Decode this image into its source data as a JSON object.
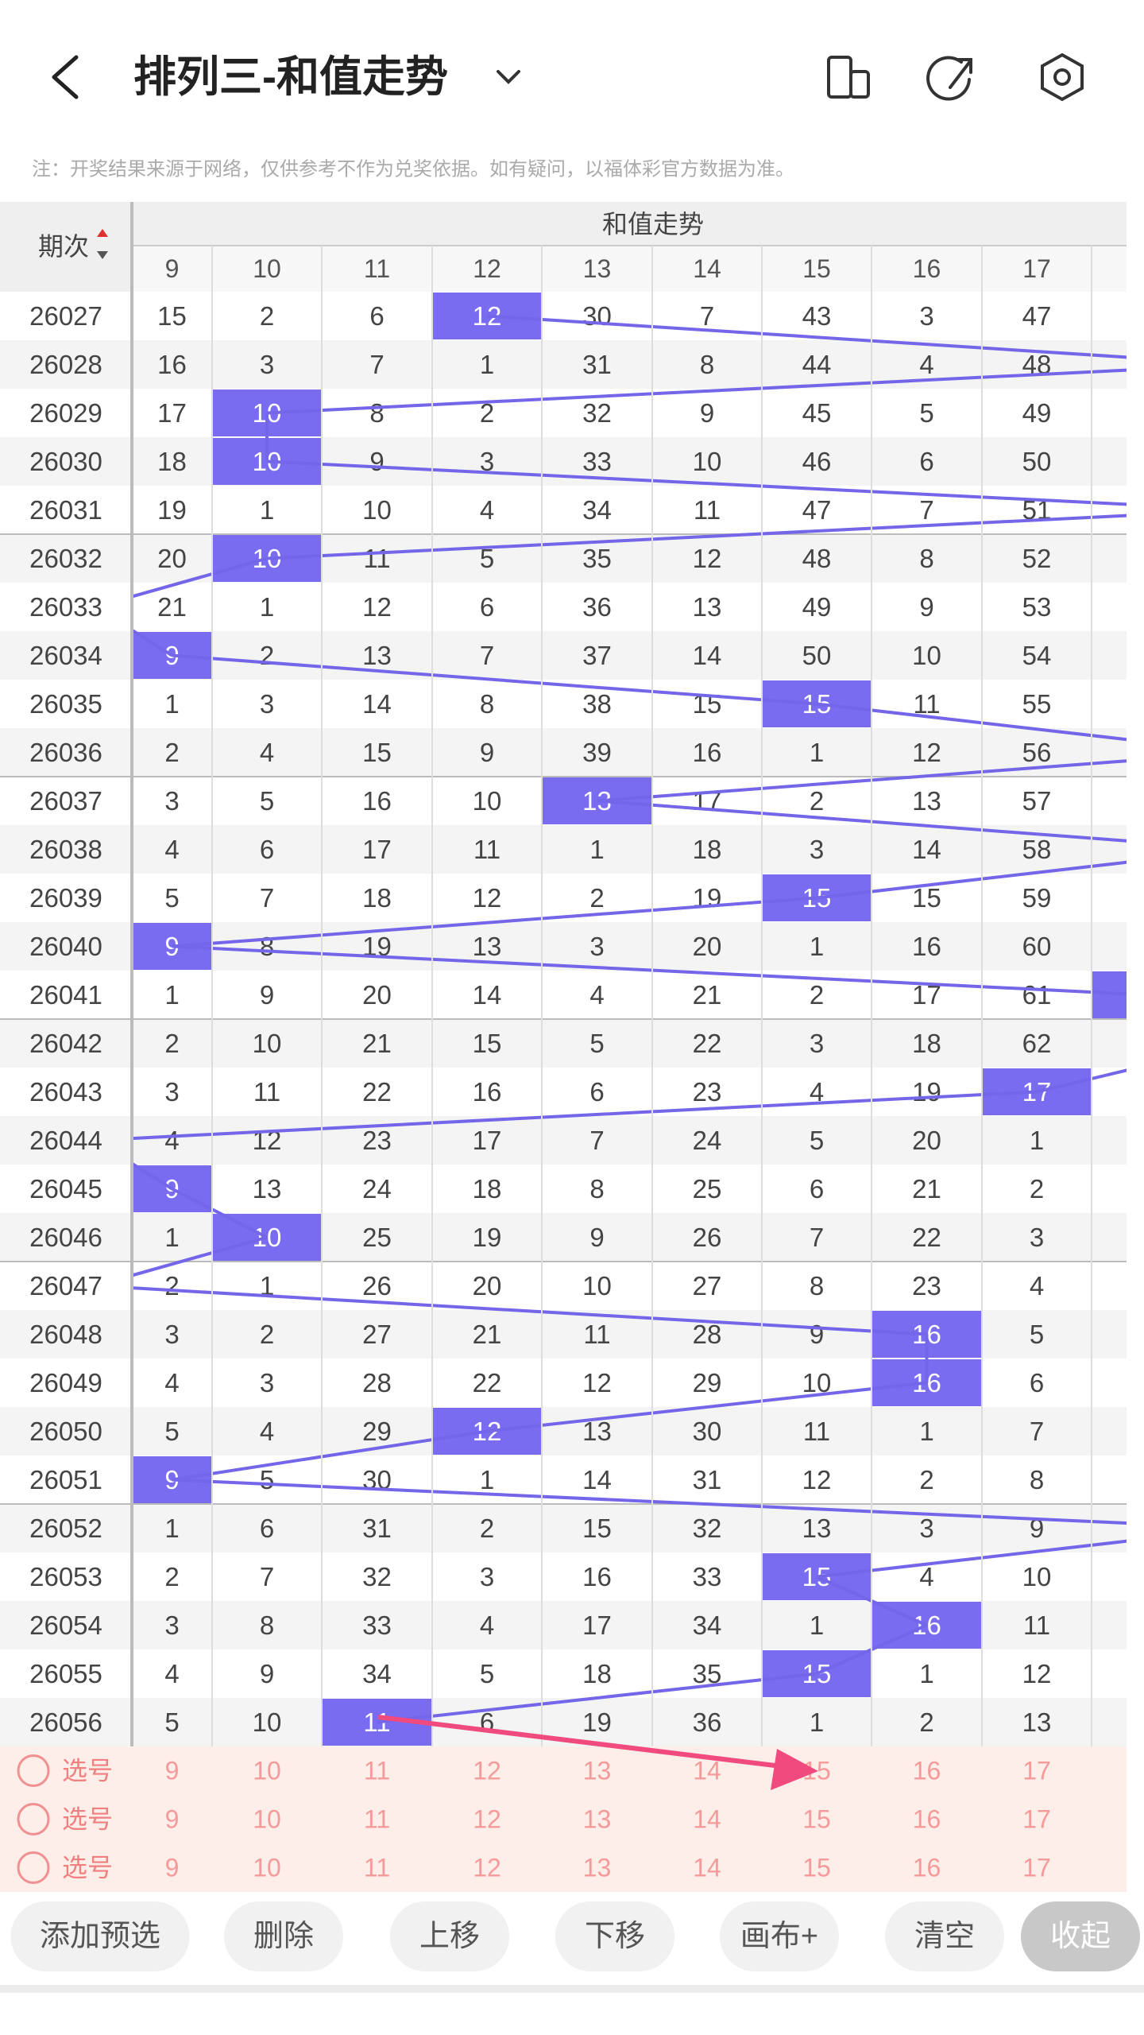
{
  "header": {
    "title": "排列三-和值走势"
  },
  "note": "注：开奖结果来源于网络，仅供参考不作为兑奖依据。如有疑问，以福体彩官方数据为准。",
  "table": {
    "issue_header": "期次",
    "group_header": "和值走势",
    "columns": [
      9,
      10,
      11,
      12,
      13,
      14,
      15,
      16,
      17
    ],
    "rows": [
      {
        "issue": "26027",
        "cells": [
          15,
          2,
          6,
          12,
          30,
          7,
          43,
          3,
          47
        ],
        "hit": 3
      },
      {
        "issue": "26028",
        "cells": [
          16,
          3,
          7,
          1,
          31,
          8,
          44,
          4,
          48
        ],
        "hit": 10
      },
      {
        "issue": "26029",
        "cells": [
          17,
          10,
          8,
          2,
          32,
          9,
          45,
          5,
          49
        ],
        "hit": 1
      },
      {
        "issue": "26030",
        "cells": [
          18,
          10,
          9,
          3,
          33,
          10,
          46,
          6,
          50
        ],
        "hit": 1
      },
      {
        "issue": "26031",
        "cells": [
          19,
          1,
          10,
          4,
          34,
          11,
          47,
          7,
          51
        ],
        "hit": 10
      },
      {
        "issue": "26032",
        "cells": [
          20,
          10,
          11,
          5,
          35,
          12,
          48,
          8,
          52
        ],
        "hit": 1
      },
      {
        "issue": "26033",
        "cells": [
          21,
          1,
          12,
          6,
          36,
          13,
          49,
          9,
          53
        ],
        "hit": -1
      },
      {
        "issue": "26034",
        "cells": [
          9,
          2,
          13,
          7,
          37,
          14,
          50,
          10,
          54
        ],
        "hit": 0
      },
      {
        "issue": "26035",
        "cells": [
          1,
          3,
          14,
          8,
          38,
          15,
          15,
          11,
          55
        ],
        "hit": 6
      },
      {
        "issue": "26036",
        "cells": [
          2,
          4,
          15,
          9,
          39,
          16,
          1,
          12,
          56
        ],
        "hit": 10
      },
      {
        "issue": "26037",
        "cells": [
          3,
          5,
          16,
          10,
          13,
          17,
          2,
          13,
          57
        ],
        "hit": 4
      },
      {
        "issue": "26038",
        "cells": [
          4,
          6,
          17,
          11,
          1,
          18,
          3,
          14,
          58
        ],
        "hit": 10
      },
      {
        "issue": "26039",
        "cells": [
          5,
          7,
          18,
          12,
          2,
          19,
          15,
          15,
          59
        ],
        "hit": 6
      },
      {
        "issue": "26040",
        "cells": [
          9,
          8,
          19,
          13,
          3,
          20,
          1,
          16,
          60
        ],
        "hit": 0
      },
      {
        "issue": "26041",
        "cells": [
          1,
          9,
          20,
          14,
          4,
          21,
          2,
          17,
          61
        ],
        "hit": 9
      },
      {
        "issue": "26042",
        "cells": [
          2,
          10,
          21,
          15,
          5,
          22,
          3,
          18,
          62
        ],
        "hit": 10
      },
      {
        "issue": "26043",
        "cells": [
          3,
          11,
          22,
          16,
          6,
          23,
          4,
          19,
          17
        ],
        "hit": 8
      },
      {
        "issue": "26044",
        "cells": [
          4,
          12,
          23,
          17,
          7,
          24,
          5,
          20,
          1
        ],
        "hit": -1
      },
      {
        "issue": "26045",
        "cells": [
          9,
          13,
          24,
          18,
          8,
          25,
          6,
          21,
          2
        ],
        "hit": 0
      },
      {
        "issue": "26046",
        "cells": [
          1,
          10,
          25,
          19,
          9,
          26,
          7,
          22,
          3
        ],
        "hit": 1
      },
      {
        "issue": "26047",
        "cells": [
          2,
          1,
          26,
          20,
          10,
          27,
          8,
          23,
          4
        ],
        "hit": -1
      },
      {
        "issue": "26048",
        "cells": [
          3,
          2,
          27,
          21,
          11,
          28,
          9,
          16,
          5
        ],
        "hit": 7
      },
      {
        "issue": "26049",
        "cells": [
          4,
          3,
          28,
          22,
          12,
          29,
          10,
          16,
          6
        ],
        "hit": 7
      },
      {
        "issue": "26050",
        "cells": [
          5,
          4,
          29,
          12,
          13,
          30,
          11,
          1,
          7
        ],
        "hit": 3
      },
      {
        "issue": "26051",
        "cells": [
          9,
          5,
          30,
          1,
          14,
          31,
          12,
          2,
          8
        ],
        "hit": 0
      },
      {
        "issue": "26052",
        "cells": [
          1,
          6,
          31,
          2,
          15,
          32,
          13,
          3,
          9
        ],
        "hit": 10
      },
      {
        "issue": "26053",
        "cells": [
          2,
          7,
          32,
          3,
          16,
          33,
          15,
          4,
          10
        ],
        "hit": 6
      },
      {
        "issue": "26054",
        "cells": [
          3,
          8,
          33,
          4,
          17,
          34,
          1,
          16,
          11
        ],
        "hit": 7
      },
      {
        "issue": "26055",
        "cells": [
          4,
          9,
          34,
          5,
          18,
          35,
          15,
          1,
          12
        ],
        "hit": 6
      },
      {
        "issue": "26056",
        "cells": [
          5,
          10,
          11,
          6,
          19,
          36,
          1,
          2,
          13
        ],
        "hit": 2
      }
    ]
  },
  "select_rows": [
    {
      "label": "选号",
      "cells": [
        9,
        10,
        11,
        12,
        13,
        14,
        15,
        16,
        17
      ]
    },
    {
      "label": "选号",
      "cells": [
        9,
        10,
        11,
        12,
        13,
        14,
        15,
        16,
        17
      ]
    },
    {
      "label": "选号",
      "cells": [
        9,
        10,
        11,
        12,
        13,
        14,
        15,
        16,
        17
      ]
    }
  ],
  "buttons": [
    "添加预选",
    "删除",
    "上移",
    "下移",
    "画布+",
    "清空",
    "收起"
  ]
}
